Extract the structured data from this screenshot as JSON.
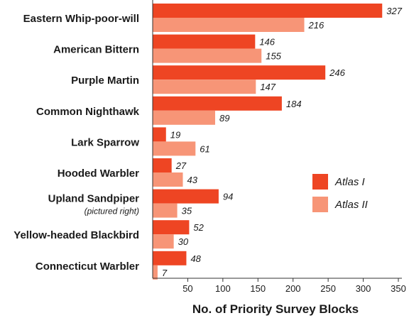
{
  "chart_data": {
    "type": "bar",
    "orientation": "horizontal",
    "categories": [
      {
        "label": "Eastern Whip-poor-will",
        "sublabel": ""
      },
      {
        "label": "American Bittern",
        "sublabel": ""
      },
      {
        "label": "Purple Martin",
        "sublabel": ""
      },
      {
        "label": "Common Nighthawk",
        "sublabel": ""
      },
      {
        "label": "Lark Sparrow",
        "sublabel": ""
      },
      {
        "label": "Hooded Warbler",
        "sublabel": ""
      },
      {
        "label": "Upland Sandpiper",
        "sublabel": "(pictured right)"
      },
      {
        "label": "Yellow-headed Blackbird",
        "sublabel": ""
      },
      {
        "label": "Connecticut Warbler",
        "sublabel": ""
      }
    ],
    "series": [
      {
        "name": "Atlas I",
        "color": "#ee4523",
        "values": [
          327,
          146,
          246,
          184,
          19,
          27,
          94,
          52,
          48
        ]
      },
      {
        "name": "Atlas II",
        "color": "#f79577",
        "values": [
          216,
          155,
          147,
          89,
          61,
          43,
          35,
          30,
          7
        ]
      }
    ],
    "xlabel": "No. of Priority Survey Blocks",
    "xlim": [
      0,
      350
    ],
    "xticks": [
      50,
      100,
      150,
      200,
      250,
      300,
      350
    ],
    "legend_position": "right"
  }
}
